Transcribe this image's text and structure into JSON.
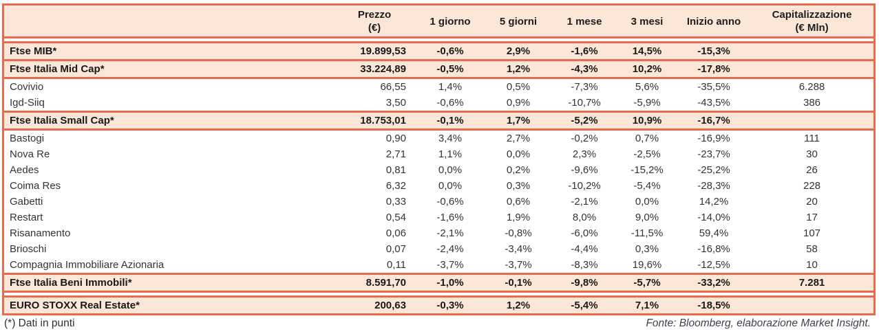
{
  "colors": {
    "accent": "#EC694C",
    "row_highlight": "#FBE6D7",
    "text_regular": "#333333",
    "text_bold": "#191919"
  },
  "table": {
    "columns": [
      {
        "key": "name",
        "label": ""
      },
      {
        "key": "prezzo",
        "label": "Prezzo\n(€)"
      },
      {
        "key": "d1",
        "label": "1 giorno"
      },
      {
        "key": "d5",
        "label": "5 giorni"
      },
      {
        "key": "m1",
        "label": "1 mese"
      },
      {
        "key": "m3",
        "label": "3 mesi"
      },
      {
        "key": "ytd",
        "label": "Inizio anno"
      },
      {
        "key": "cap",
        "label": "Capitalizzazione\n(€ Mln)"
      }
    ],
    "rows": [
      {
        "type": "spacer",
        "divider": true
      },
      {
        "type": "index",
        "divider": true,
        "name": "Ftse MIB*",
        "prezzo": "19.899,53",
        "d1": "-0,6%",
        "d5": "2,9%",
        "m1": "-1,6%",
        "m3": "14,5%",
        "ytd": "-15,3%",
        "cap": ""
      },
      {
        "type": "index",
        "divider": true,
        "name": "Ftse Italia Mid Cap*",
        "prezzo": "33.224,89",
        "d1": "-0,5%",
        "d5": "1,2%",
        "m1": "-4,3%",
        "m3": "10,2%",
        "ytd": "-17,8%",
        "cap": ""
      },
      {
        "type": "stock",
        "divider": false,
        "name": "Covivio",
        "prezzo": "66,55",
        "d1": "1,4%",
        "d5": "0,5%",
        "m1": "-7,3%",
        "m3": "5,6%",
        "ytd": "-35,5%",
        "cap": "6.288"
      },
      {
        "type": "stock",
        "divider": true,
        "name": "Igd-Siiq",
        "prezzo": "3,50",
        "d1": "-0,6%",
        "d5": "0,9%",
        "m1": "-10,7%",
        "m3": "-5,9%",
        "ytd": "-43,5%",
        "cap": "386"
      },
      {
        "type": "index",
        "divider": true,
        "name": "Ftse Italia Small Cap*",
        "prezzo": "18.753,01",
        "d1": "-0,1%",
        "d5": "1,7%",
        "m1": "-5,2%",
        "m3": "10,9%",
        "ytd": "-16,7%",
        "cap": ""
      },
      {
        "type": "stock",
        "divider": false,
        "name": "Bastogi",
        "prezzo": "0,90",
        "d1": "3,4%",
        "d5": "2,7%",
        "m1": "-0,2%",
        "m3": "0,7%",
        "ytd": "-16,9%",
        "cap": "111"
      },
      {
        "type": "stock",
        "divider": false,
        "name": "Nova Re",
        "prezzo": "2,71",
        "d1": "1,1%",
        "d5": "0,0%",
        "m1": "2,3%",
        "m3": "-2,5%",
        "ytd": "-23,7%",
        "cap": "30"
      },
      {
        "type": "stock",
        "divider": false,
        "name": "Aedes",
        "prezzo": "0,81",
        "d1": "0,0%",
        "d5": "0,2%",
        "m1": "-9,6%",
        "m3": "-15,2%",
        "ytd": "-25,2%",
        "cap": "26"
      },
      {
        "type": "stock",
        "divider": false,
        "name": "Coima Res",
        "prezzo": "6,32",
        "d1": "0,0%",
        "d5": "0,3%",
        "m1": "-10,2%",
        "m3": "-5,4%",
        "ytd": "-28,3%",
        "cap": "228"
      },
      {
        "type": "stock",
        "divider": false,
        "name": "Gabetti",
        "prezzo": "0,33",
        "d1": "-0,6%",
        "d5": "0,6%",
        "m1": "-2,1%",
        "m3": "0,0%",
        "ytd": "14,2%",
        "cap": "20"
      },
      {
        "type": "stock",
        "divider": false,
        "name": "Restart",
        "prezzo": "0,54",
        "d1": "-1,6%",
        "d5": "1,9%",
        "m1": "8,0%",
        "m3": "9,0%",
        "ytd": "-14,0%",
        "cap": "17"
      },
      {
        "type": "stock",
        "divider": false,
        "name": "Risanamento",
        "prezzo": "0,06",
        "d1": "-2,1%",
        "d5": "-0,8%",
        "m1": "-6,0%",
        "m3": "-11,5%",
        "ytd": "59,4%",
        "cap": "107"
      },
      {
        "type": "stock",
        "divider": false,
        "name": "Brioschi",
        "prezzo": "0,07",
        "d1": "-2,4%",
        "d5": "-3,4%",
        "m1": "-4,4%",
        "m3": "0,3%",
        "ytd": "-16,8%",
        "cap": "58"
      },
      {
        "type": "stock",
        "divider": true,
        "name": "Compagnia Immobiliare Azionaria",
        "prezzo": "0,11",
        "d1": "-3,7%",
        "d5": "-3,7%",
        "m1": "-8,3%",
        "m3": "19,6%",
        "ytd": "-12,5%",
        "cap": "10"
      },
      {
        "type": "index",
        "divider": true,
        "name": "Ftse Italia Beni Immobili*",
        "prezzo": "8.591,70",
        "d1": "-1,0%",
        "d5": "-0,1%",
        "m1": "-9,8%",
        "m3": "-5,7%",
        "ytd": "-33,2%",
        "cap": "7.281"
      },
      {
        "type": "spacer",
        "divider": true
      },
      {
        "type": "index",
        "divider": false,
        "name": "EURO STOXX Real Estate*",
        "prezzo": "200,63",
        "d1": "-0,3%",
        "d5": "1,2%",
        "m1": "-5,4%",
        "m3": "7,1%",
        "ytd": "-18,5%",
        "cap": ""
      }
    ]
  },
  "footer": {
    "note": "(*) Dati in punti",
    "source": "Fonte: Bloomberg, elaborazione Market Insight."
  }
}
